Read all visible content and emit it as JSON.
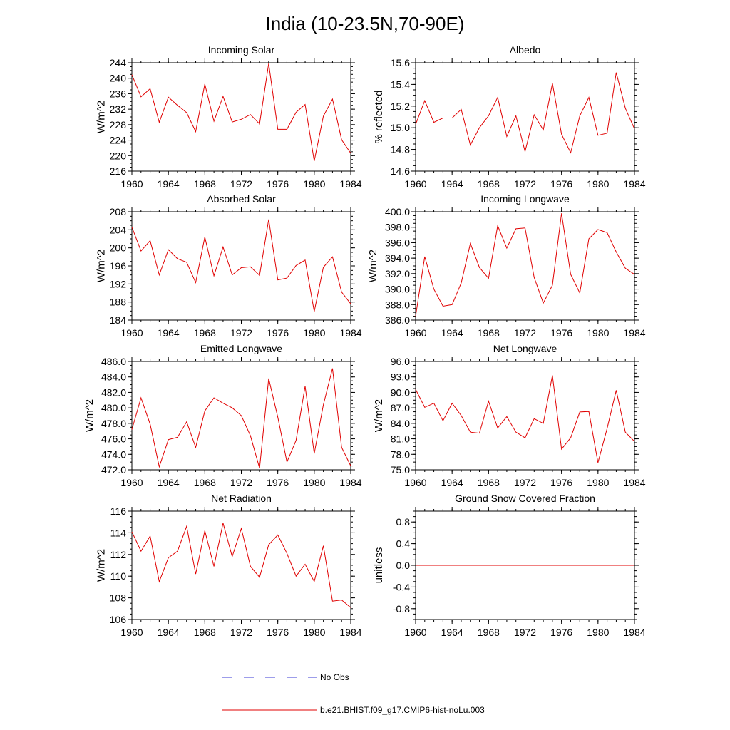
{
  "figure": {
    "title": "India (10-23.5N,70-90E)"
  },
  "legend": {
    "items": [
      {
        "label": "No Obs",
        "color": "#3b3bd6",
        "style": "dashed"
      },
      {
        "label": "b.e21.BHIST.f09_g17.CMIP6-hist-noLu.003",
        "color": "#e00000",
        "style": "solid"
      }
    ]
  },
  "chart_data": [
    {
      "type": "line",
      "title": "Incoming Solar",
      "ylabel": "W/m^2",
      "xlim": [
        1960,
        1984
      ],
      "ylim": [
        216,
        244
      ],
      "xticks": [
        1960,
        1964,
        1968,
        1972,
        1976,
        1980,
        1984
      ],
      "yticks": [
        "216",
        "220",
        "224",
        "228",
        "232",
        "236",
        "240",
        "244"
      ],
      "x": [
        1960,
        1961,
        1962,
        1963,
        1964,
        1965,
        1966,
        1967,
        1968,
        1969,
        1970,
        1971,
        1972,
        1973,
        1974,
        1975,
        1976,
        1977,
        1978,
        1979,
        1980,
        1981,
        1982,
        1983,
        1984
      ],
      "series": [
        {
          "name": "b.e21.BHIST.f09_g17.CMIP6-hist-noLu.003",
          "color": "#e00000",
          "values": [
            240.9,
            235.2,
            237.3,
            228.6,
            235.1,
            233.0,
            231.1,
            226.2,
            238.5,
            228.9,
            235.3,
            228.7,
            229.4,
            230.6,
            228.2,
            243.8,
            226.8,
            226.8,
            231.2,
            233.2,
            218.6,
            230.2,
            234.6,
            224.1,
            220.6
          ]
        }
      ]
    },
    {
      "type": "line",
      "title": "Albedo",
      "ylabel": "% reflected",
      "xlim": [
        1960,
        1984
      ],
      "ylim": [
        14.6,
        15.6
      ],
      "xticks": [
        1960,
        1964,
        1968,
        1972,
        1976,
        1980,
        1984
      ],
      "yticks": [
        "14.6",
        "14.8",
        "15.0",
        "15.2",
        "15.4",
        "15.6"
      ],
      "x": [
        1960,
        1961,
        1962,
        1963,
        1964,
        1965,
        1966,
        1967,
        1968,
        1969,
        1970,
        1971,
        1972,
        1973,
        1974,
        1975,
        1976,
        1977,
        1978,
        1979,
        1980,
        1981,
        1982,
        1983,
        1984
      ],
      "series": [
        {
          "name": "b.e21.BHIST.f09_g17.CMIP6-hist-noLu.003",
          "color": "#e00000",
          "values": [
            15.03,
            15.25,
            15.05,
            15.09,
            15.09,
            15.17,
            14.84,
            15.0,
            15.11,
            15.28,
            14.92,
            15.11,
            14.78,
            15.12,
            14.98,
            15.41,
            14.94,
            14.77,
            15.11,
            15.28,
            14.93,
            14.95,
            15.51,
            15.18,
            14.99
          ]
        }
      ]
    },
    {
      "type": "line",
      "title": "Absorbed Solar",
      "ylabel": "W/m^2",
      "xlim": [
        1960,
        1984
      ],
      "ylim": [
        184,
        208
      ],
      "xticks": [
        1960,
        1964,
        1968,
        1972,
        1976,
        1980,
        1984
      ],
      "yticks": [
        "184",
        "188",
        "192",
        "196",
        "200",
        "204",
        "208"
      ],
      "x": [
        1960,
        1961,
        1962,
        1963,
        1964,
        1965,
        1966,
        1967,
        1968,
        1969,
        1970,
        1971,
        1972,
        1973,
        1974,
        1975,
        1976,
        1977,
        1978,
        1979,
        1980,
        1981,
        1982,
        1983,
        1984
      ],
      "series": [
        {
          "name": "b.e21.BHIST.f09_g17.CMIP6-hist-noLu.003",
          "color": "#e00000",
          "values": [
            204.6,
            199.3,
            201.6,
            194.0,
            199.6,
            197.6,
            196.8,
            192.3,
            202.4,
            193.8,
            200.2,
            194.0,
            195.6,
            195.8,
            193.9,
            206.3,
            192.9,
            193.3,
            196.1,
            197.3,
            185.9,
            195.7,
            198.0,
            190.2,
            187.6
          ]
        }
      ]
    },
    {
      "type": "line",
      "title": "Incoming Longwave",
      "ylabel": "W/m^2",
      "xlim": [
        1960,
        1984
      ],
      "ylim": [
        386,
        400
      ],
      "xticks": [
        1960,
        1964,
        1968,
        1972,
        1976,
        1980,
        1984
      ],
      "yticks": [
        "386.0",
        "388.0",
        "390.0",
        "392.0",
        "394.0",
        "396.0",
        "398.0",
        "400.0"
      ],
      "x": [
        1960,
        1961,
        1962,
        1963,
        1964,
        1965,
        1966,
        1967,
        1968,
        1969,
        1970,
        1971,
        1972,
        1973,
        1974,
        1975,
        1976,
        1977,
        1978,
        1979,
        1980,
        1981,
        1982,
        1983,
        1984
      ],
      "series": [
        {
          "name": "b.e21.BHIST.f09_g17.CMIP6-hist-noLu.003",
          "color": "#e00000",
          "values": [
            386.5,
            394.2,
            390.0,
            387.8,
            388.0,
            390.8,
            395.9,
            392.8,
            391.4,
            398.2,
            395.3,
            397.8,
            397.9,
            391.5,
            388.2,
            390.5,
            399.8,
            391.9,
            389.5,
            396.5,
            397.7,
            397.3,
            394.8,
            392.7,
            391.9
          ]
        }
      ]
    },
    {
      "type": "line",
      "title": "Emitted Longwave",
      "ylabel": "W/m^2",
      "xlim": [
        1960,
        1984
      ],
      "ylim": [
        472,
        486
      ],
      "xticks": [
        1960,
        1964,
        1968,
        1972,
        1976,
        1980,
        1984
      ],
      "yticks": [
        "472.0",
        "474.0",
        "476.0",
        "478.0",
        "480.0",
        "482.0",
        "484.0",
        "486.0"
      ],
      "x": [
        1960,
        1961,
        1962,
        1963,
        1964,
        1965,
        1966,
        1967,
        1968,
        1969,
        1970,
        1971,
        1972,
        1973,
        1974,
        1975,
        1976,
        1977,
        1978,
        1979,
        1980,
        1981,
        1982,
        1983,
        1984
      ],
      "series": [
        {
          "name": "b.e21.BHIST.f09_g17.CMIP6-hist-noLu.003",
          "color": "#e00000",
          "values": [
            477.2,
            481.3,
            477.9,
            472.4,
            475.9,
            476.2,
            478.2,
            474.9,
            479.6,
            481.3,
            480.6,
            480.0,
            479.0,
            476.4,
            472.2,
            483.8,
            478.8,
            473.0,
            475.8,
            482.8,
            474.1,
            480.4,
            485.1,
            474.9,
            472.5
          ]
        }
      ]
    },
    {
      "type": "line",
      "title": "Net Longwave",
      "ylabel": "W/m^2",
      "xlim": [
        1960,
        1984
      ],
      "ylim": [
        75,
        96
      ],
      "xticks": [
        1960,
        1964,
        1968,
        1972,
        1976,
        1980,
        1984
      ],
      "yticks": [
        "75.0",
        "78.0",
        "81.0",
        "84.0",
        "87.0",
        "90.0",
        "93.0",
        "96.0"
      ],
      "x": [
        1960,
        1961,
        1962,
        1963,
        1964,
        1965,
        1966,
        1967,
        1968,
        1969,
        1970,
        1971,
        1972,
        1973,
        1974,
        1975,
        1976,
        1977,
        1978,
        1979,
        1980,
        1981,
        1982,
        1983,
        1984
      ],
      "series": [
        {
          "name": "b.e21.BHIST.f09_g17.CMIP6-hist-noLu.003",
          "color": "#e00000",
          "values": [
            90.6,
            87.1,
            87.9,
            84.5,
            87.9,
            85.5,
            82.3,
            82.1,
            88.3,
            83.1,
            85.3,
            82.3,
            81.2,
            84.9,
            84.0,
            93.3,
            79.0,
            81.2,
            86.2,
            86.3,
            76.4,
            83.0,
            90.4,
            82.3,
            80.5
          ]
        }
      ]
    },
    {
      "type": "line",
      "title": "Net Radiation",
      "ylabel": "W/m^2",
      "xlim": [
        1960,
        1984
      ],
      "ylim": [
        106,
        116
      ],
      "xticks": [
        1960,
        1964,
        1968,
        1972,
        1976,
        1980,
        1984
      ],
      "yticks": [
        "106",
        "108",
        "110",
        "112",
        "114",
        "116"
      ],
      "x": [
        1960,
        1961,
        1962,
        1963,
        1964,
        1965,
        1966,
        1967,
        1968,
        1969,
        1970,
        1971,
        1972,
        1973,
        1974,
        1975,
        1976,
        1977,
        1978,
        1979,
        1980,
        1981,
        1982,
        1983,
        1984
      ],
      "series": [
        {
          "name": "b.e21.BHIST.f09_g17.CMIP6-hist-noLu.003",
          "color": "#e00000",
          "values": [
            114.1,
            112.3,
            113.7,
            109.5,
            111.7,
            112.3,
            114.6,
            110.2,
            114.2,
            110.9,
            114.9,
            111.8,
            114.4,
            110.9,
            109.9,
            112.9,
            113.8,
            112.1,
            110.0,
            111.1,
            109.5,
            112.8,
            107.7,
            107.8,
            107.1
          ]
        }
      ]
    },
    {
      "type": "line",
      "title": "Ground Snow Covered Fraction",
      "ylabel": "unitless",
      "xlim": [
        1960,
        1984
      ],
      "ylim": [
        -1.0,
        1.0
      ],
      "xticks": [
        1960,
        1964,
        1968,
        1972,
        1976,
        1980,
        1984
      ],
      "yticks": [
        "-0.8",
        "-0.4",
        "0.0",
        "0.4",
        "0.8"
      ],
      "x": [
        1960,
        1961,
        1962,
        1963,
        1964,
        1965,
        1966,
        1967,
        1968,
        1969,
        1970,
        1971,
        1972,
        1973,
        1974,
        1975,
        1976,
        1977,
        1978,
        1979,
        1980,
        1981,
        1982,
        1983,
        1984
      ],
      "series": [
        {
          "name": "b.e21.BHIST.f09_g17.CMIP6-hist-noLu.003",
          "color": "#e00000",
          "values": [
            0,
            0,
            0,
            0,
            0,
            0,
            0,
            0,
            0,
            0,
            0,
            0,
            0,
            0,
            0,
            0,
            0,
            0,
            0,
            0,
            0,
            0,
            0,
            0,
            0
          ]
        }
      ]
    }
  ]
}
